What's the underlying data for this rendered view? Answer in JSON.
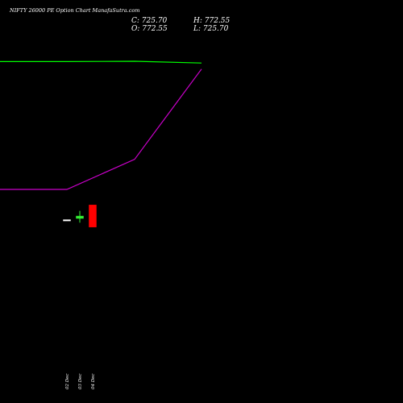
{
  "header": {
    "title": "NIFTY 26000  PE Option  Chart ManafaSutra.com",
    "close_label": "C: 725.70",
    "high_label": "H: 772.55",
    "open_label": "O: 772.55",
    "low_label": "L: 725.70"
  },
  "chart_data": {
    "type": "candlestick",
    "title": "NIFTY 26000  PE Option  Chart ManafaSutra.com",
    "x_tick_labels": [
      "02 Dec",
      "03 Dec",
      "04 Dec"
    ],
    "candles": [
      {
        "date": "02 Dec",
        "open": 740.0,
        "high": 740.0,
        "low": 740.0,
        "close": 740.0,
        "color": "#ffffff"
      },
      {
        "date": "03 Dec",
        "open": 744.0,
        "high": 760.0,
        "low": 735.0,
        "close": 749.0,
        "color": "#33ee33"
      },
      {
        "date": "04 Dec",
        "open": 772.55,
        "high": 772.55,
        "low": 725.7,
        "close": 725.7,
        "color": "#ff0000"
      }
    ],
    "lines": [
      {
        "color": "#00ff00",
        "values": [
          1850,
          1850,
          1852,
          1840
        ]
      },
      {
        "color": "#cc00cc",
        "values": [
          1000,
          1000,
          1200,
          1800
        ]
      }
    ],
    "grid": false,
    "legend": "none",
    "colors": {
      "background": "#000000",
      "text": "#ffffff",
      "up": "#33ee33",
      "down": "#ff0000"
    }
  }
}
